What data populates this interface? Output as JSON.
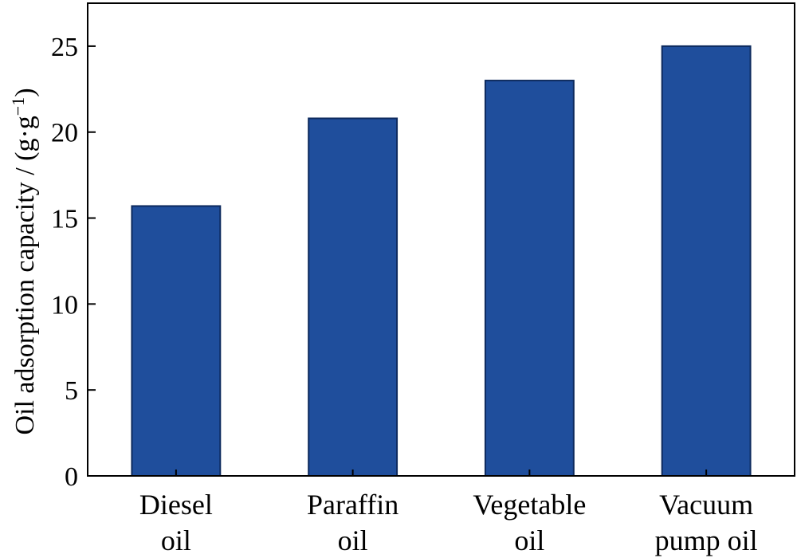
{
  "chart_data": {
    "type": "bar",
    "categories": [
      [
        "Diesel",
        "oil"
      ],
      [
        "Paraffin",
        "oil"
      ],
      [
        "Vegetable",
        "oil"
      ],
      [
        "Vacuum",
        "pump oil"
      ]
    ],
    "values": [
      15.7,
      20.8,
      23.0,
      25.0
    ],
    "title": "",
    "xlabel": "",
    "ylabel": {
      "main": "Oil adsorption capacity / (g·g",
      "sup": "−1",
      "close": ")"
    },
    "ylim": [
      0,
      27.5
    ],
    "yticks": [
      0,
      5,
      10,
      15,
      20,
      25
    ],
    "grid": false,
    "legend": "none",
    "bar_color": "#1f4e9c",
    "bar_edge_color": "#0d2a5e"
  }
}
